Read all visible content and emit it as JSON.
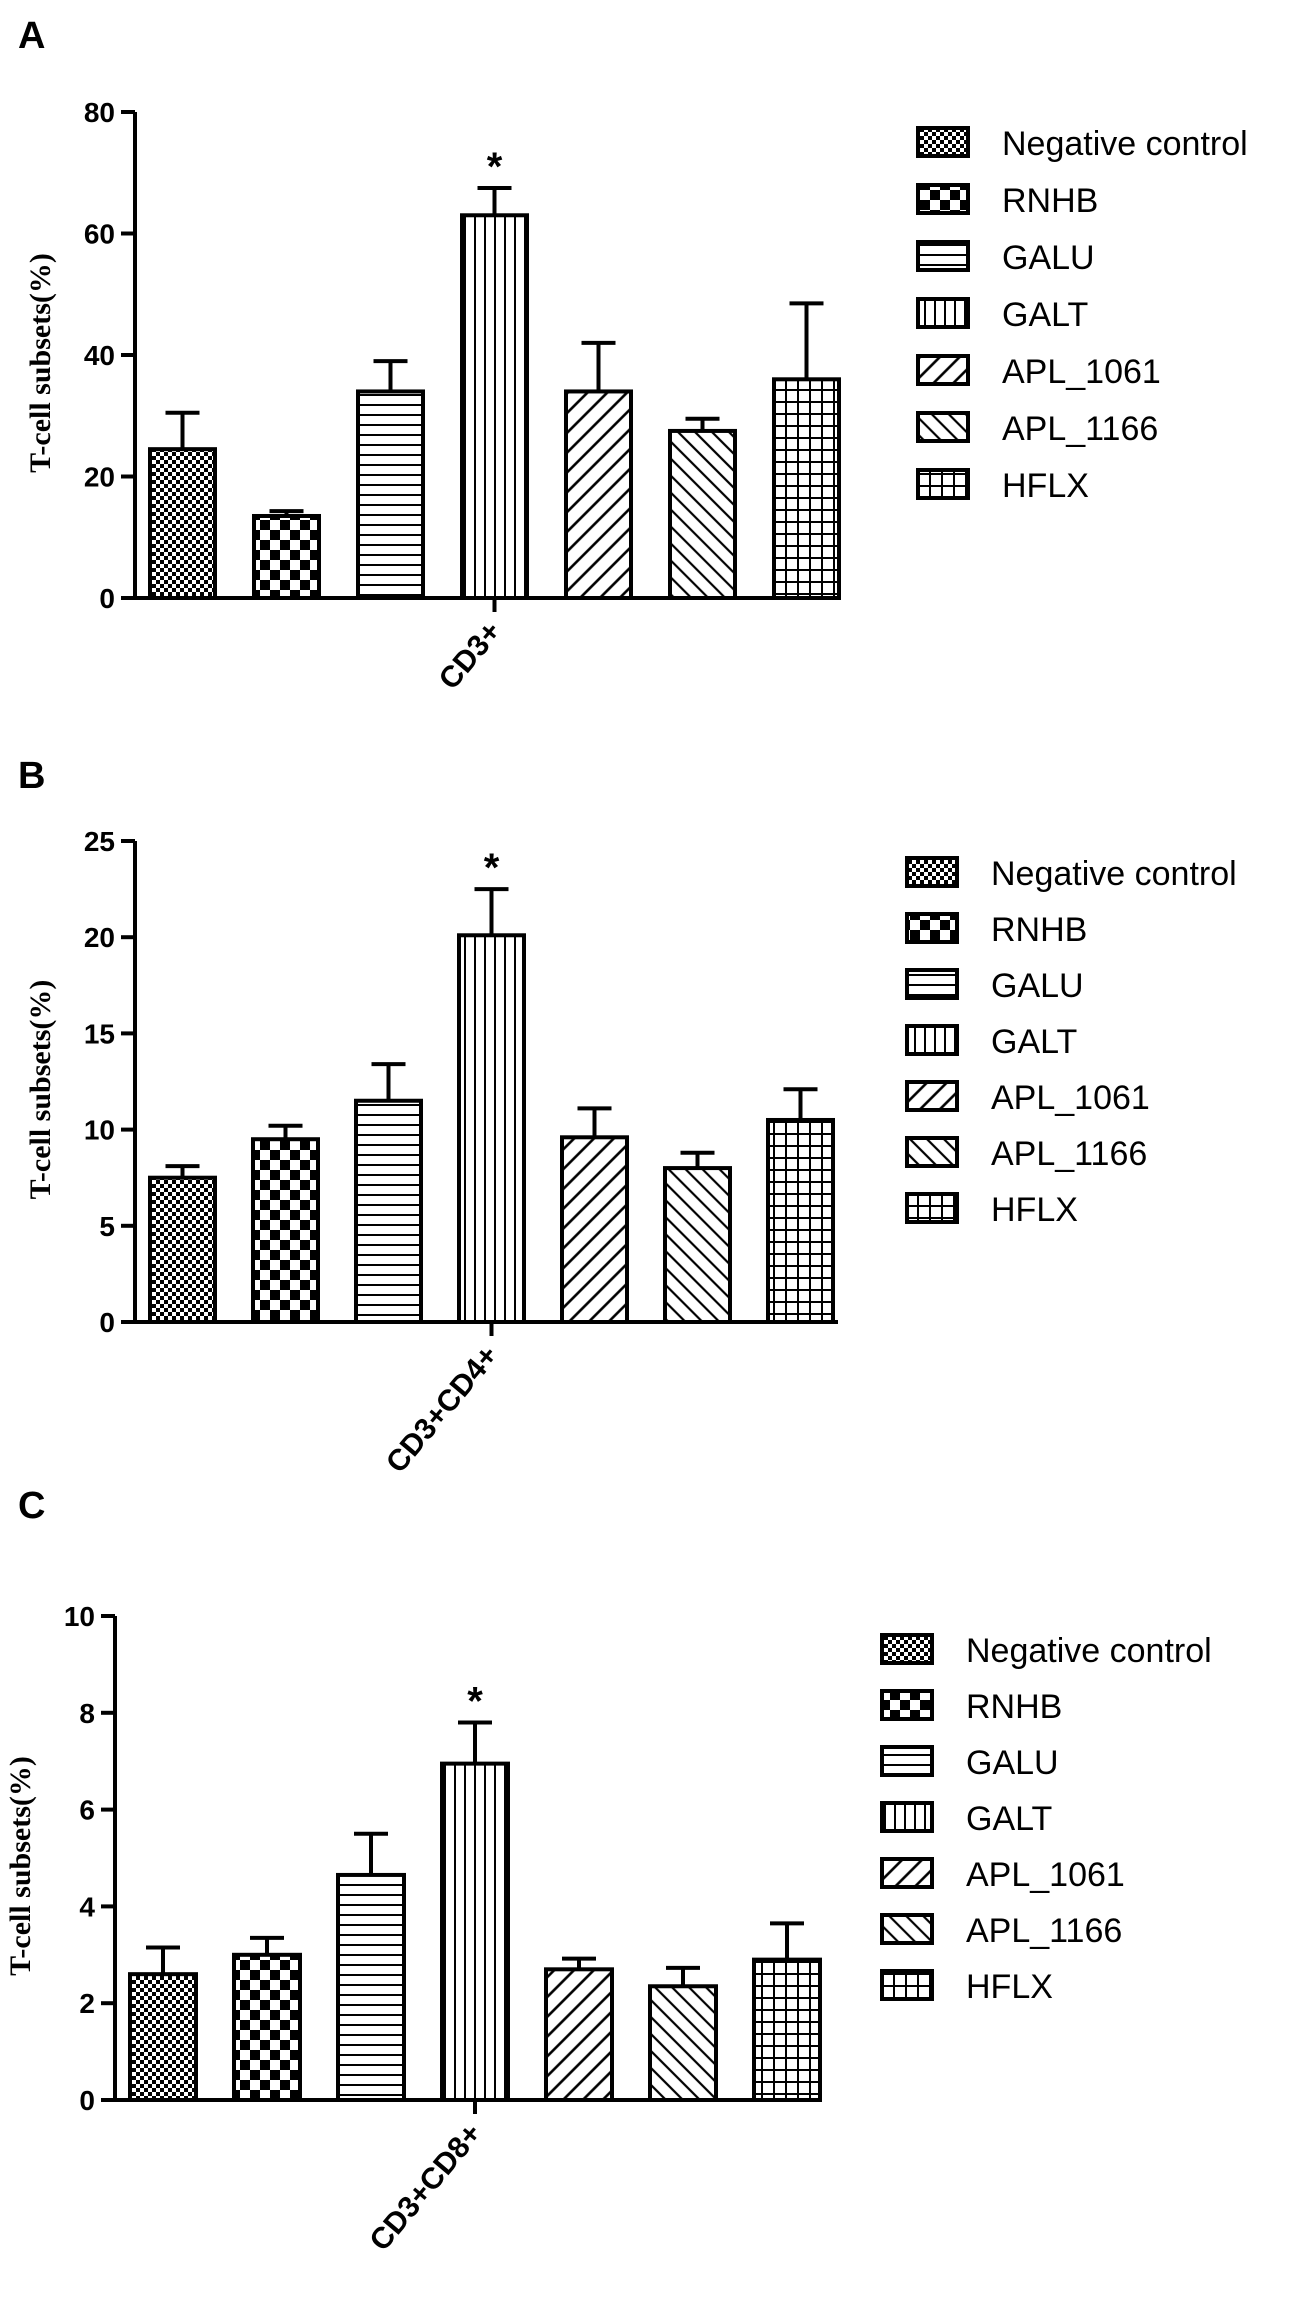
{
  "chart_data": [
    {
      "panel": "A",
      "type": "bar",
      "ylabel": "T-cell subsets(%)",
      "category": "CD3+",
      "ylim": [
        0,
        80
      ],
      "yticks": [
        0,
        20,
        40,
        60,
        80
      ],
      "significance": "*",
      "significant_series": "GALT",
      "series": [
        {
          "name": "Negative control",
          "value": 24.5,
          "error": 6.0
        },
        {
          "name": "RNHB",
          "value": 13.5,
          "error": 0.8
        },
        {
          "name": "GALU",
          "value": 34.0,
          "error": 5.0
        },
        {
          "name": "GALT",
          "value": 63.0,
          "error": 4.5
        },
        {
          "name": "APL_1061",
          "value": 34.0,
          "error": 8.0
        },
        {
          "name": "APL_1166",
          "value": 27.5,
          "error": 2.0
        },
        {
          "name": "HFLX",
          "value": 36.0,
          "error": 12.5
        }
      ]
    },
    {
      "panel": "B",
      "type": "bar",
      "ylabel": "T-cell subsets(%)",
      "category": "CD3+CD4+",
      "ylim": [
        0,
        25
      ],
      "yticks": [
        0,
        5,
        10,
        15,
        20,
        25
      ],
      "significance": "*",
      "significant_series": "GALT",
      "series": [
        {
          "name": "Negative control",
          "value": 7.5,
          "error": 0.6
        },
        {
          "name": "RNHB",
          "value": 9.5,
          "error": 0.7
        },
        {
          "name": "GALU",
          "value": 11.5,
          "error": 1.9
        },
        {
          "name": "GALT",
          "value": 20.1,
          "error": 2.4
        },
        {
          "name": "APL_1061",
          "value": 9.6,
          "error": 1.5
        },
        {
          "name": "APL_1166",
          "value": 8.0,
          "error": 0.8
        },
        {
          "name": "HFLX",
          "value": 10.5,
          "error": 1.6
        }
      ]
    },
    {
      "panel": "C",
      "type": "bar",
      "ylabel": "T-cell subsets(%)",
      "category": "CD3+CD8+",
      "ylim": [
        0,
        10
      ],
      "yticks": [
        0,
        2,
        4,
        6,
        8,
        10
      ],
      "significance": "*",
      "significant_series": "GALT",
      "series": [
        {
          "name": "Negative control",
          "value": 2.6,
          "error": 0.55
        },
        {
          "name": "RNHB",
          "value": 3.0,
          "error": 0.35
        },
        {
          "name": "GALU",
          "value": 4.65,
          "error": 0.85
        },
        {
          "name": "GALT",
          "value": 6.95,
          "error": 0.85
        },
        {
          "name": "APL_1061",
          "value": 2.7,
          "error": 0.22
        },
        {
          "name": "APL_1166",
          "value": 2.35,
          "error": 0.38
        },
        {
          "name": "HFLX",
          "value": 2.9,
          "error": 0.75
        }
      ]
    }
  ]
}
